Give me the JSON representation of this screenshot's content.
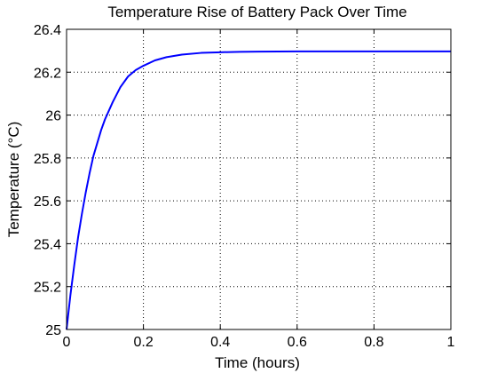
{
  "chart_data": {
    "type": "line",
    "title": "Temperature Rise of Battery Pack Over Time",
    "xlabel": "Time (hours)",
    "ylabel": "Temperature (°C)",
    "xlim": [
      0,
      1
    ],
    "ylim": [
      25,
      26.4
    ],
    "xticks": [
      0,
      0.2,
      0.4,
      0.6,
      0.8,
      1
    ],
    "xtick_labels": [
      "0",
      "0.2",
      "0.4",
      "0.6",
      "0.8",
      "1"
    ],
    "yticks": [
      25,
      25.2,
      25.4,
      25.6,
      25.8,
      26,
      26.2,
      26.4
    ],
    "ytick_labels": [
      "25",
      "25.2",
      "25.4",
      "25.6",
      "25.8",
      "26",
      "26.2",
      "26.4"
    ],
    "grid": true,
    "grid_style": "dotted",
    "series": [
      {
        "color": "#0000ff",
        "x": [
          0,
          0.01,
          0.02,
          0.03,
          0.04,
          0.05,
          0.06,
          0.07,
          0.08,
          0.09,
          0.1,
          0.12,
          0.14,
          0.16,
          0.18,
          0.2,
          0.23,
          0.26,
          0.3,
          0.35,
          0.4,
          0.45,
          0.5,
          0.6,
          0.7,
          0.8,
          0.9,
          1.0
        ],
        "values": [
          25.0,
          25.16,
          25.3,
          25.43,
          25.54,
          25.64,
          25.73,
          25.81,
          25.87,
          25.93,
          25.98,
          26.06,
          26.13,
          26.18,
          26.21,
          26.23,
          26.255,
          26.27,
          26.282,
          26.29,
          26.293,
          26.295,
          26.296,
          26.297,
          26.297,
          26.297,
          26.297,
          26.297
        ]
      }
    ]
  }
}
